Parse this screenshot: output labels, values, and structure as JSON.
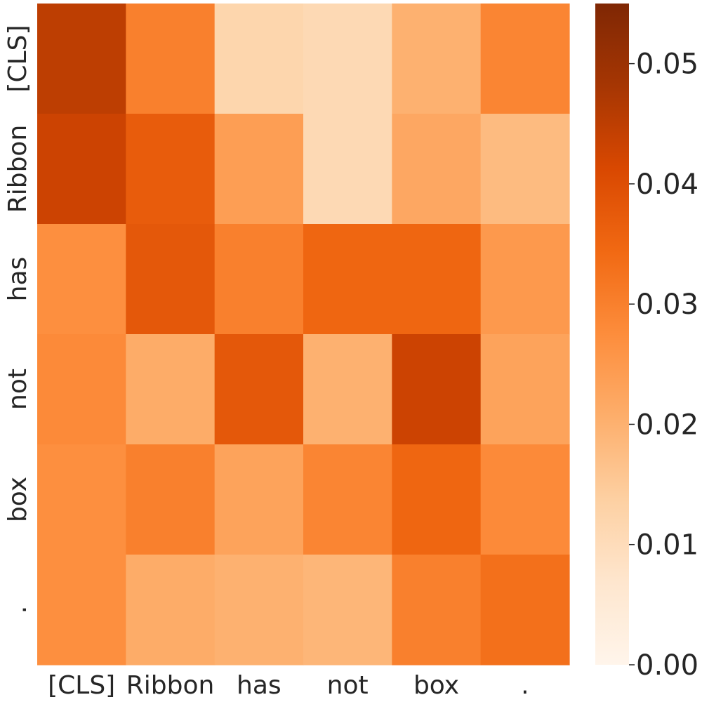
{
  "chart_data": {
    "type": "heatmap",
    "title": "",
    "xlabel": "",
    "ylabel": "",
    "x_categories": [
      "[CLS]",
      "Ribbon",
      "has",
      "not",
      "box",
      "."
    ],
    "y_categories": [
      "[CLS]",
      "Ribbon",
      "has",
      "not",
      "box",
      "."
    ],
    "values": [
      [
        0.045,
        0.03,
        0.012,
        0.011,
        0.02,
        0.029
      ],
      [
        0.043,
        0.037,
        0.024,
        0.011,
        0.022,
        0.018
      ],
      [
        0.027,
        0.038,
        0.03,
        0.035,
        0.035,
        0.025
      ],
      [
        0.028,
        0.021,
        0.038,
        0.02,
        0.043,
        0.023
      ],
      [
        0.027,
        0.03,
        0.023,
        0.029,
        0.035,
        0.028
      ],
      [
        0.027,
        0.021,
        0.02,
        0.019,
        0.03,
        0.033
      ]
    ],
    "colorbar": {
      "range": [
        0.0,
        0.055
      ],
      "ticks": [
        0.0,
        0.01,
        0.02,
        0.03,
        0.04,
        0.05
      ],
      "tick_labels": [
        "0.00",
        "0.01",
        "0.02",
        "0.03",
        "0.04",
        "0.05"
      ],
      "colormap": "Oranges",
      "colormap_stops": [
        "#fff5eb",
        "#fee6ce",
        "#fdd0a2",
        "#fdae6b",
        "#fd8d3c",
        "#f16913",
        "#d94801",
        "#a63603",
        "#7f2704"
      ]
    },
    "grid": false,
    "legend": "colorbar-right"
  }
}
